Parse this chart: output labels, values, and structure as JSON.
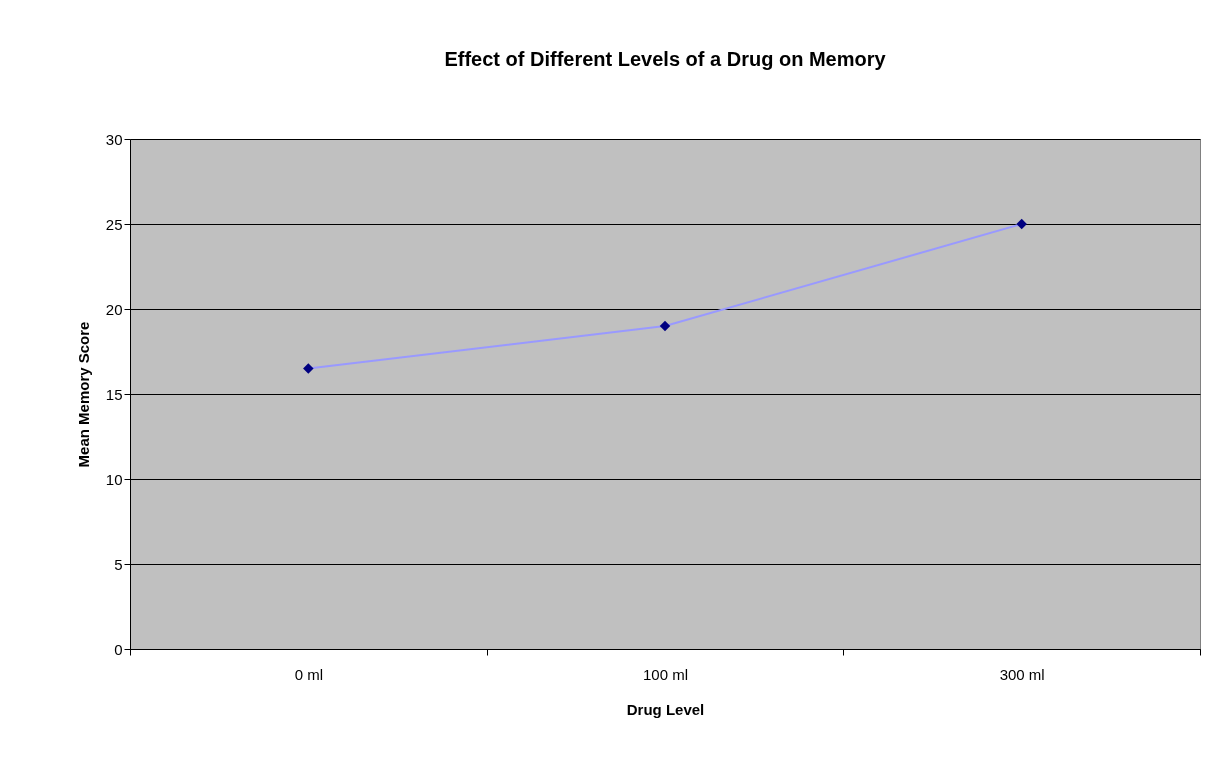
{
  "chart_data": {
    "type": "line",
    "title": "Effect of Different Levels of a Drug on Memory",
    "xlabel": "Drug Level",
    "ylabel": "Mean Memory Score",
    "categories": [
      "0 ml",
      "100 ml",
      "300 ml"
    ],
    "series": [
      {
        "color": "#9999ff",
        "values": [
          16.5,
          19,
          25
        ]
      }
    ],
    "ylim": [
      0,
      30
    ],
    "yticks": [
      0,
      5,
      10,
      15,
      20,
      25,
      30
    ],
    "grid": "y",
    "marker": "diamond",
    "line_style": "solid",
    "legend": false
  }
}
